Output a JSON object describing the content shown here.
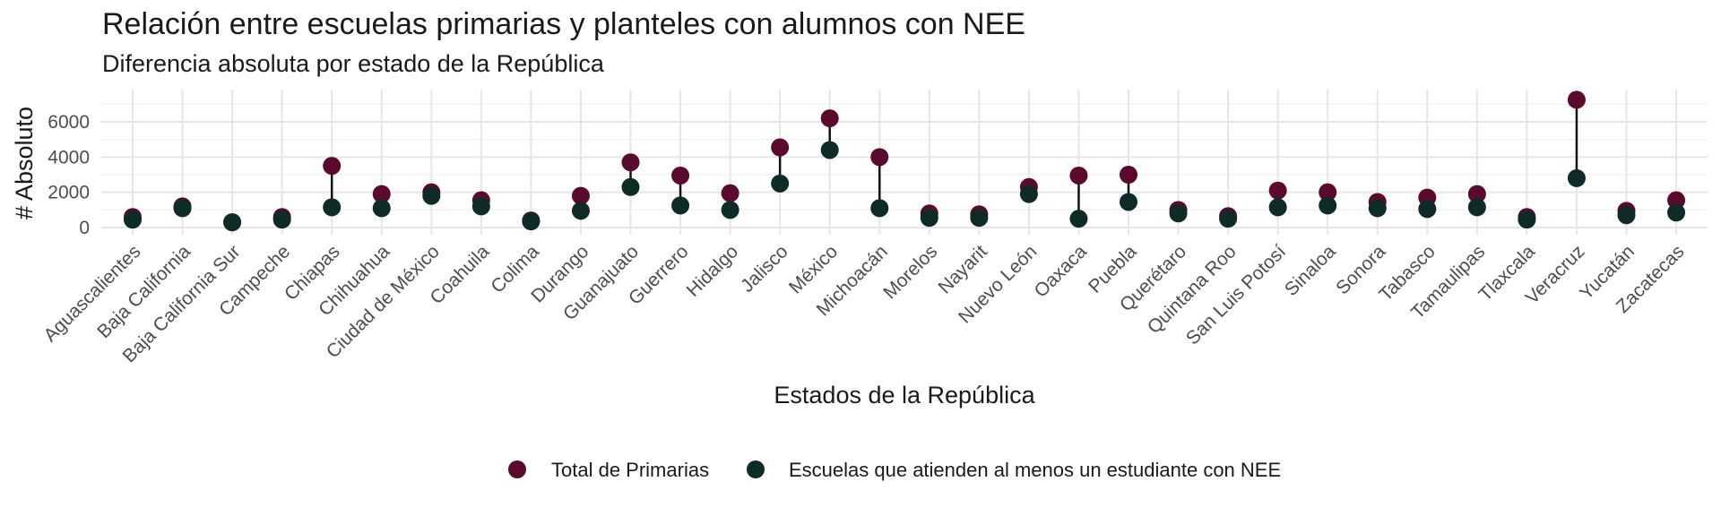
{
  "chart_data": {
    "type": "lollipop",
    "title": "Relación entre escuelas primarias y planteles con alumnos con NEE",
    "subtitle": "Diferencia absoluta por estado de la República",
    "xlabel": "Estados de la República",
    "ylabel": "# Absoluto",
    "ylim": [
      0,
      7300
    ],
    "yticks": [
      0,
      2000,
      4000,
      6000
    ],
    "grid": true,
    "legend_position": "bottom",
    "categories": [
      "Aguascalientes",
      "Baja California",
      "Baja California Sur",
      "Campeche",
      "Chiapas",
      "Chihuahua",
      "Ciudad de México",
      "Coahuila",
      "Colima",
      "Durango",
      "Guanajuato",
      "Guerrero",
      "Hidalgo",
      "Jalisco",
      "México",
      "Michoacán",
      "Morelos",
      "Nayarit",
      "Nuevo León",
      "Oaxaca",
      "Puebla",
      "Querétaro",
      "Quintana Roo",
      "San Luis Potosí",
      "Sinaloa",
      "Sonora",
      "Tabasco",
      "Tamaulipas",
      "Tlaxcala",
      "Veracruz",
      "Yucatán",
      "Zacatecas"
    ],
    "series": [
      {
        "name": "Total de Primarias",
        "color": "#5a0a2c",
        "values": [
          600,
          1200,
          300,
          600,
          3500,
          1900,
          2000,
          1550,
          400,
          1800,
          3700,
          2950,
          1950,
          4550,
          6200,
          4000,
          800,
          750,
          2300,
          2950,
          3000,
          1000,
          650,
          2100,
          2000,
          1450,
          1700,
          1900,
          600,
          7250,
          950,
          1550
        ]
      },
      {
        "name": "Escuelas que atienden al menos un estudiante con NEE",
        "color": "#0f2b28",
        "values": [
          450,
          1100,
          300,
          450,
          1150,
          1100,
          1800,
          1200,
          350,
          950,
          2300,
          1250,
          1000,
          2500,
          4400,
          1100,
          550,
          550,
          1900,
          500,
          1450,
          800,
          500,
          1150,
          1250,
          1100,
          1050,
          1150,
          450,
          2800,
          700,
          850
        ]
      }
    ]
  }
}
